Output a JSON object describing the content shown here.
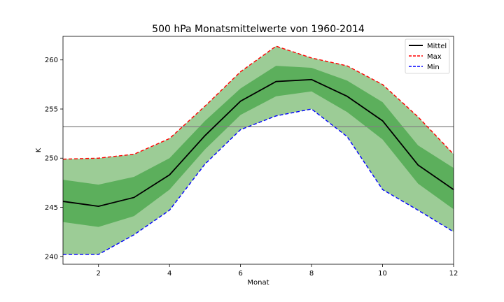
{
  "chart_data": {
    "type": "line",
    "title": "500 hPa Monatsmittelwerte von 1960-2014",
    "xlabel": "Monat",
    "ylabel": "K",
    "xlim": [
      1,
      12
    ],
    "ylim": [
      239.2,
      262.4
    ],
    "xticks": [
      2,
      4,
      6,
      8,
      10,
      12
    ],
    "yticks": [
      240,
      245,
      250,
      255,
      260
    ],
    "grid": false,
    "legend_position": "top-right",
    "x": [
      1,
      2,
      3,
      4,
      5,
      6,
      7,
      8,
      9,
      10,
      11,
      12
    ],
    "series": [
      {
        "name": "Mittel",
        "color": "#000000",
        "style": "solid",
        "values": [
          245.6,
          245.1,
          246.0,
          248.3,
          252.3,
          255.8,
          257.8,
          258.0,
          256.3,
          253.8,
          249.3,
          246.8
        ]
      },
      {
        "name": "Max",
        "color": "#ff0000",
        "style": "dashed",
        "values": [
          249.9,
          250.0,
          250.4,
          252.0,
          255.3,
          258.8,
          261.4,
          260.2,
          259.4,
          257.5,
          254.2,
          250.4
        ]
      },
      {
        "name": "Min",
        "color": "#0000ff",
        "style": "dashed",
        "values": [
          240.2,
          240.2,
          242.2,
          244.7,
          249.4,
          252.9,
          254.3,
          255.0,
          252.2,
          246.8,
          244.7,
          242.5
        ]
      }
    ],
    "bands": [
      {
        "color": "#9ccc96",
        "lower": [
          240.2,
          240.2,
          242.2,
          244.7,
          249.4,
          252.9,
          254.3,
          255.0,
          252.2,
          246.8,
          244.7,
          242.5
        ],
        "upper": [
          249.9,
          250.0,
          250.4,
          252.0,
          255.3,
          258.8,
          261.4,
          260.2,
          259.4,
          257.5,
          254.2,
          250.4
        ]
      },
      {
        "color": "#5caf5c",
        "lower": [
          243.5,
          243.0,
          244.1,
          246.8,
          250.9,
          254.4,
          256.3,
          256.8,
          254.7,
          251.9,
          247.4,
          244.8
        ],
        "upper": [
          247.8,
          247.3,
          248.1,
          250.0,
          253.8,
          257.1,
          259.4,
          259.2,
          257.9,
          255.7,
          251.3,
          249.0
        ]
      }
    ],
    "hline": {
      "value": 253.2,
      "color": "#808080"
    }
  }
}
